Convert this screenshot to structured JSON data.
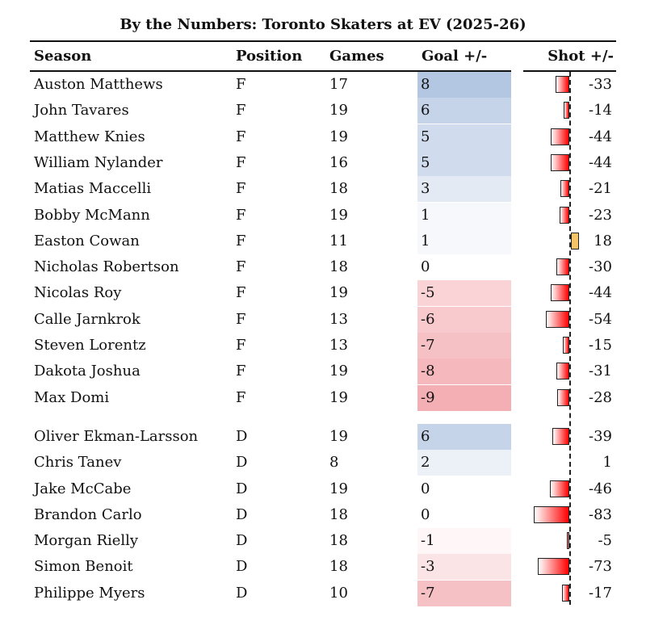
{
  "chart_data": {
    "type": "table",
    "title": "By the Numbers: Toronto Skaters at EV (2025-26)",
    "columns": [
      "Season",
      "Position",
      "Games",
      "Goal +/-",
      "Shot +/-"
    ],
    "colors": {
      "goal_pos": "#b3c6e2",
      "goal_neg": "#f4afb5",
      "shot_neg": "#ff0000",
      "shot_pos": "#f5c468"
    },
    "groups": [
      {
        "rows": [
          {
            "name": "Auston Matthews",
            "pos": "F",
            "games": "17",
            "goal": 8,
            "shot": -33
          },
          {
            "name": "John Tavares",
            "pos": "F",
            "games": "19",
            "goal": 6,
            "shot": -14
          },
          {
            "name": "Matthew Knies",
            "pos": "F",
            "games": "19",
            "goal": 5,
            "shot": -44
          },
          {
            "name": "William Nylander",
            "pos": "F",
            "games": "16",
            "goal": 5,
            "shot": -44
          },
          {
            "name": "Matias Maccelli",
            "pos": "F",
            "games": "18",
            "goal": 3,
            "shot": -21
          },
          {
            "name": "Bobby McMann",
            "pos": "F",
            "games": "19",
            "goal": 1,
            "shot": -23
          },
          {
            "name": "Easton Cowan",
            "pos": "F",
            "games": "11",
            "goal": 1,
            "shot": 18
          },
          {
            "name": "Nicholas Robertson",
            "pos": "F",
            "games": "18",
            "goal": 0,
            "shot": -30
          },
          {
            "name": "Nicolas Roy",
            "pos": "F",
            "games": "19",
            "goal": -5,
            "shot": -44
          },
          {
            "name": "Calle Jarnkrok",
            "pos": "F",
            "games": "13",
            "goal": -6,
            "shot": -54
          },
          {
            "name": "Steven Lorentz",
            "pos": "F",
            "games": "13",
            "goal": -7,
            "shot": -15
          },
          {
            "name": "Dakota Joshua",
            "pos": "F",
            "games": "19",
            "goal": -8,
            "shot": -31
          },
          {
            "name": "Max Domi",
            "pos": "F",
            "games": "19",
            "goal": -9,
            "shot": -28
          }
        ]
      },
      {
        "rows": [
          {
            "name": "Oliver Ekman-Larsson",
            "pos": "D",
            "games": "19",
            "goal": 6,
            "shot": -39
          },
          {
            "name": "Chris Tanev",
            "pos": "D",
            "games": "8",
            "goal": 2,
            "shot": 1
          },
          {
            "name": "Jake McCabe",
            "pos": "D",
            "games": "19",
            "goal": 0,
            "shot": -46
          },
          {
            "name": "Brandon Carlo",
            "pos": "D",
            "games": "18",
            "goal": 0,
            "shot": -83
          },
          {
            "name": "Morgan Rielly",
            "pos": "D",
            "games": "18",
            "goal": -1,
            "shot": -5
          },
          {
            "name": "Simon Benoit",
            "pos": "D",
            "games": "18",
            "goal": -3,
            "shot": -73
          },
          {
            "name": "Philippe Myers",
            "pos": "D",
            "games": "10",
            "goal": -7,
            "shot": -17
          }
        ]
      }
    ]
  }
}
